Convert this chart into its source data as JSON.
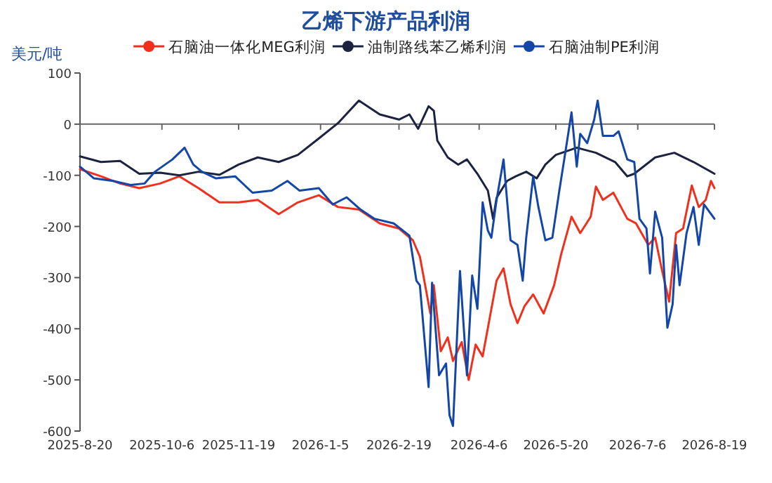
{
  "chart_data": {
    "type": "line",
    "title": "乙烯下游产品利润",
    "ylabel": "美元/吨",
    "legend": "top",
    "marker": "none",
    "line_style": "solid",
    "xlim": [
      "2025-08-20",
      "2026-08-19"
    ],
    "ylim": [
      -600,
      100
    ],
    "yticks": [
      100,
      0,
      -100,
      -200,
      -300,
      -400,
      -500,
      -600
    ],
    "xticks": [
      {
        "value": "2025-08-20",
        "label": "2025-8-20"
      },
      {
        "value": "2025-10-06",
        "label": "2025-10-6"
      },
      {
        "value": "2025-11-19",
        "label": "2025-11-19"
      },
      {
        "value": "2026-01-05",
        "label": "2026-1-5"
      },
      {
        "value": "2026-02-19",
        "label": "2026-2-19"
      },
      {
        "value": "2026-04-06",
        "label": "2026-4-6"
      },
      {
        "value": "2026-05-20",
        "label": "2026-5-20"
      },
      {
        "value": "2026-07-06",
        "label": "2026-7-6"
      },
      {
        "value": "2026-08-19",
        "label": "2026-8-19"
      }
    ],
    "series": [
      {
        "name": "石脑油一体化MEG利润",
        "color": "#f0301c",
        "x": [
          "2025-08-20",
          "2025-09-01",
          "2025-09-12",
          "2025-09-23",
          "2025-10-05",
          "2025-10-16",
          "2025-10-27",
          "2025-11-08",
          "2025-11-19",
          "2025-11-30",
          "2025-12-12",
          "2025-12-23",
          "2026-01-04",
          "2026-01-15",
          "2026-01-27",
          "2026-02-08",
          "2026-02-19",
          "2026-02-27",
          "2026-03-03",
          "2026-03-09",
          "2026-03-11",
          "2026-03-15",
          "2026-03-19",
          "2026-03-22",
          "2026-03-27",
          "2026-03-31",
          "2026-04-04",
          "2026-04-08",
          "2026-04-12",
          "2026-04-16",
          "2026-04-20",
          "2026-04-24",
          "2026-04-28",
          "2026-05-02",
          "2026-05-07",
          "2026-05-13",
          "2026-05-19",
          "2026-05-23",
          "2026-05-29",
          "2026-06-03",
          "2026-06-09",
          "2026-06-12",
          "2026-06-16",
          "2026-06-22",
          "2026-06-30",
          "2026-07-05",
          "2026-07-12",
          "2026-07-16",
          "2026-07-20",
          "2026-07-24",
          "2026-07-28",
          "2026-08-01",
          "2026-08-06",
          "2026-08-10",
          "2026-08-14",
          "2026-08-17",
          "2026-08-19"
        ],
        "values": [
          -88,
          -102,
          -116,
          -125,
          -116,
          -102,
          -125,
          -153,
          -153,
          -148,
          -176,
          -153,
          -139,
          -162,
          -167,
          -194,
          -204,
          -227,
          -259,
          -370,
          -315,
          -444,
          -417,
          -463,
          -426,
          -500,
          -431,
          -454,
          -380,
          -306,
          -282,
          -352,
          -389,
          -356,
          -333,
          -370,
          -315,
          -255,
          -181,
          -213,
          -181,
          -122,
          -148,
          -134,
          -185,
          -194,
          -236,
          -222,
          -287,
          -347,
          -213,
          -204,
          -120,
          -162,
          -148,
          -111,
          -125
        ]
      },
      {
        "name": "油制路线苯乙烯利润",
        "color": "#1c2340",
        "x": [
          "2025-08-20",
          "2025-09-01",
          "2025-09-12",
          "2025-09-23",
          "2025-10-05",
          "2025-10-16",
          "2025-10-27",
          "2025-11-08",
          "2025-11-19",
          "2025-11-30",
          "2025-12-12",
          "2025-12-23",
          "2026-01-04",
          "2026-01-15",
          "2026-01-27",
          "2026-02-08",
          "2026-02-19",
          "2026-02-25",
          "2026-03-02",
          "2026-03-08",
          "2026-03-11",
          "2026-03-13",
          "2026-03-19",
          "2026-03-25",
          "2026-03-30",
          "2026-04-05",
          "2026-04-11",
          "2026-04-14",
          "2026-04-16",
          "2026-04-22",
          "2026-04-27",
          "2026-05-03",
          "2026-05-09",
          "2026-05-14",
          "2026-05-20",
          "2026-06-01",
          "2026-06-12",
          "2026-06-23",
          "2026-06-30",
          "2026-07-04",
          "2026-07-16",
          "2026-07-27",
          "2026-08-07",
          "2026-08-19"
        ],
        "values": [
          -63,
          -74,
          -72,
          -97,
          -95,
          -100,
          -93,
          -99,
          -79,
          -65,
          -74,
          -60,
          -28,
          2,
          46,
          19,
          9,
          19,
          -9,
          35,
          26,
          -32,
          -65,
          -79,
          -69,
          -97,
          -130,
          -185,
          -144,
          -111,
          -102,
          -93,
          -106,
          -79,
          -60,
          -46,
          -56,
          -74,
          -102,
          -97,
          -65,
          -56,
          -74,
          -97
        ]
      },
      {
        "name": "石脑油制PE利润",
        "color": "#1346a6",
        "x": [
          "2025-08-20",
          "2025-08-28",
          "2025-09-08",
          "2025-09-18",
          "2025-09-26",
          "2025-10-02",
          "2025-10-12",
          "2025-10-19",
          "2025-10-24",
          "2025-10-29",
          "2025-11-06",
          "2025-11-17",
          "2025-11-27",
          "2025-12-08",
          "2025-12-17",
          "2025-12-24",
          "2026-01-04",
          "2026-01-12",
          "2026-01-20",
          "2026-01-28",
          "2026-02-05",
          "2026-02-16",
          "2026-02-25",
          "2026-03-01",
          "2026-03-03",
          "2026-03-08",
          "2026-03-10",
          "2026-03-14",
          "2026-03-18",
          "2026-03-20",
          "2026-03-22",
          "2026-03-26",
          "2026-03-30",
          "2026-04-02",
          "2026-04-05",
          "2026-04-08",
          "2026-04-11",
          "2026-04-13",
          "2026-04-16",
          "2026-04-20",
          "2026-04-24",
          "2026-04-28",
          "2026-05-01",
          "2026-05-03",
          "2026-05-07",
          "2026-05-10",
          "2026-05-14",
          "2026-05-18",
          "2026-05-22",
          "2026-05-25",
          "2026-05-29",
          "2026-06-01",
          "2026-06-03",
          "2026-06-07",
          "2026-06-11",
          "2026-06-13",
          "2026-06-16",
          "2026-06-22",
          "2026-06-25",
          "2026-06-30",
          "2026-07-04",
          "2026-07-07",
          "2026-07-11",
          "2026-07-13",
          "2026-07-16",
          "2026-07-20",
          "2026-07-23",
          "2026-07-26",
          "2026-07-28",
          "2026-07-30",
          "2026-08-03",
          "2026-08-07",
          "2026-08-10",
          "2026-08-13",
          "2026-08-19"
        ],
        "values": [
          -83,
          -106,
          -111,
          -119,
          -116,
          -93,
          -69,
          -46,
          -79,
          -93,
          -106,
          -102,
          -134,
          -130,
          -111,
          -130,
          -125,
          -157,
          -143,
          -167,
          -185,
          -194,
          -218,
          -306,
          -315,
          -514,
          -310,
          -491,
          -468,
          -569,
          -590,
          -287,
          -491,
          -296,
          -361,
          -153,
          -208,
          -222,
          -148,
          -69,
          -227,
          -236,
          -306,
          -222,
          -102,
          -162,
          -227,
          -222,
          -130,
          -65,
          23,
          -83,
          -19,
          -37,
          9,
          46,
          -23,
          -23,
          -14,
          -69,
          -74,
          -185,
          -204,
          -292,
          -171,
          -222,
          -398,
          -352,
          -236,
          -315,
          -213,
          -162,
          -236,
          -157,
          -185
        ]
      }
    ]
  }
}
